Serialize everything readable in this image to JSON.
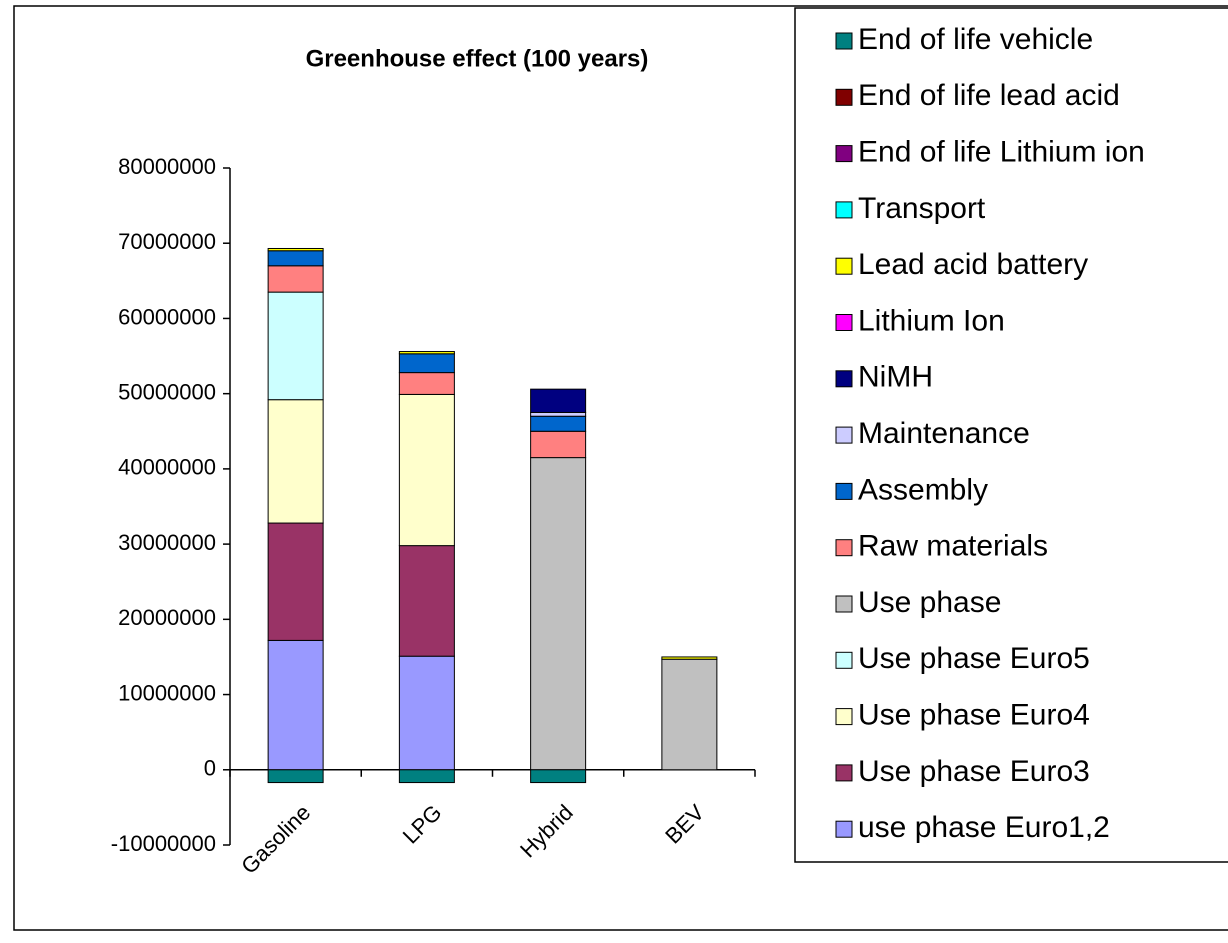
{
  "chart_data": {
    "type": "bar",
    "stacked": true,
    "title": "Greenhouse effect (100 years)",
    "categories": [
      "Gasoline",
      "LPG",
      "Hybrid",
      "BEV"
    ],
    "ylim": [
      -10000000,
      80000000
    ],
    "yticks": [
      -10000000,
      0,
      10000000,
      20000000,
      30000000,
      40000000,
      50000000,
      60000000,
      70000000,
      80000000
    ],
    "series": [
      {
        "name": "use phase Euro1,2",
        "color": "#9999ff",
        "values": [
          17200000,
          15100000,
          0,
          0
        ]
      },
      {
        "name": "Use phase Euro3",
        "color": "#993366",
        "values": [
          15600000,
          14700000,
          0,
          0
        ]
      },
      {
        "name": "Use phase Euro4",
        "color": "#ffffcc",
        "values": [
          16400000,
          20100000,
          0,
          0
        ]
      },
      {
        "name": "Use phase Euro5",
        "color": "#ccffff",
        "values": [
          14300000,
          0,
          0,
          0
        ]
      },
      {
        "name": "Use phase",
        "color": "#c0c0c0",
        "values": [
          0,
          0,
          41500000,
          14700000
        ]
      },
      {
        "name": "Raw materials",
        "color": "#ff8080",
        "values": [
          3500000,
          2900000,
          3500000,
          0
        ]
      },
      {
        "name": "Assembly",
        "color": "#0066cc",
        "values": [
          2000000,
          2500000,
          2000000,
          0
        ]
      },
      {
        "name": "Maintenance",
        "color": "#ccccff",
        "values": [
          0,
          0,
          500000,
          0
        ]
      },
      {
        "name": "NiMH",
        "color": "#000080",
        "values": [
          0,
          0,
          3100000,
          0
        ]
      },
      {
        "name": "Lithium Ion",
        "color": "#ff00ff",
        "values": [
          0,
          0,
          0,
          0
        ]
      },
      {
        "name": "Lead acid battery",
        "color": "#ffff00",
        "values": [
          300000,
          300000,
          0,
          300000
        ]
      },
      {
        "name": "Transport",
        "color": "#00ffff",
        "values": [
          0,
          0,
          0,
          0
        ]
      },
      {
        "name": "End of life Lithium ion",
        "color": "#800080",
        "values": [
          0,
          0,
          0,
          0
        ]
      },
      {
        "name": "End of life lead acid",
        "color": "#800000",
        "values": [
          0,
          0,
          0,
          0
        ]
      },
      {
        "name": "End of life vehicle",
        "color": "#008080",
        "values": [
          -1700000,
          -1700000,
          -1700000,
          0
        ]
      }
    ]
  }
}
